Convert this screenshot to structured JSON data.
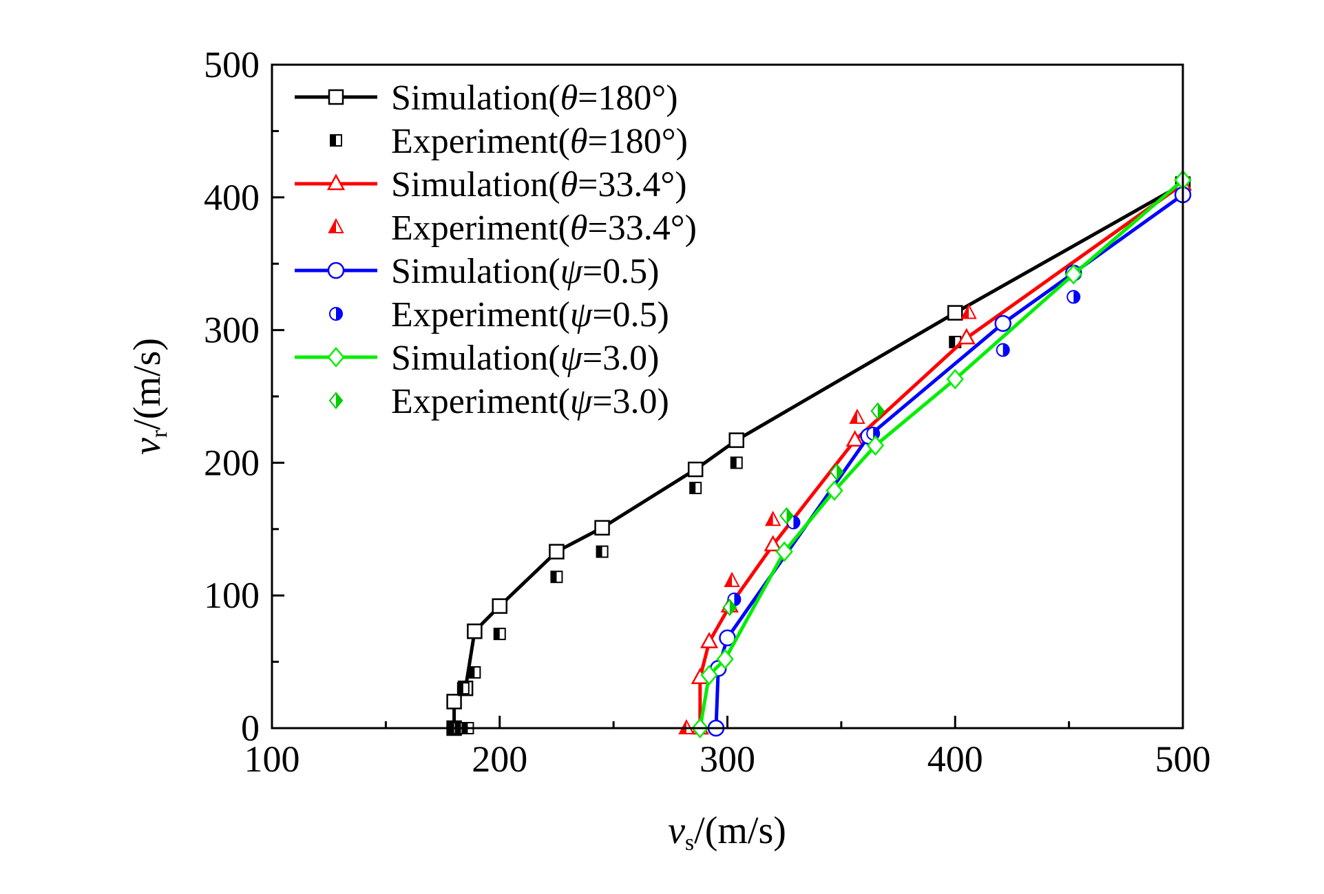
{
  "chart_data": {
    "type": "scatter",
    "x": {
      "label_var": "v",
      "label_sub": "s",
      "label_unit": "/(m/s)",
      "lim": [
        100,
        500
      ],
      "ticks": [
        100,
        200,
        300,
        400,
        500
      ],
      "tick_labels": [
        "100",
        "200",
        "300",
        "400",
        "500"
      ],
      "minor_step": 50
    },
    "y": {
      "label_var": "v",
      "label_sub": "r",
      "label_unit": "/(m/s)",
      "lim": [
        0,
        500
      ],
      "ticks": [
        0,
        100,
        200,
        300,
        400,
        500
      ],
      "tick_labels": [
        "0",
        "100",
        "200",
        "300",
        "400",
        "500"
      ],
      "minor_step": 50
    },
    "grid": false,
    "legend_position": "top-left",
    "series": [
      {
        "name": "Simulation(θ=180°)",
        "legend_prefix": "Simulation(",
        "legend_symbol": "θ",
        "legend_suffix": "=180°)",
        "kind": "line",
        "marker": "square-open",
        "color": "#000000",
        "points": [
          [
            180,
            0
          ],
          [
            180,
            20
          ],
          [
            185,
            30
          ],
          [
            189,
            73
          ],
          [
            200,
            92
          ],
          [
            225,
            133
          ],
          [
            245,
            151
          ],
          [
            286,
            195
          ],
          [
            304,
            217
          ],
          [
            400,
            313
          ],
          [
            500,
            410
          ]
        ]
      },
      {
        "name": "Experiment(θ=180°)",
        "legend_prefix": "Experiment(",
        "legend_symbol": "θ",
        "legend_suffix": "=180°)",
        "kind": "scatter",
        "marker": "square-half",
        "color": "#000000",
        "points": [
          [
            180,
            0
          ],
          [
            183,
            0
          ],
          [
            186,
            0
          ],
          [
            184,
            30
          ],
          [
            189,
            42
          ],
          [
            200,
            71
          ],
          [
            225,
            114
          ],
          [
            245,
            133
          ],
          [
            286,
            181
          ],
          [
            304,
            200
          ],
          [
            400,
            291
          ]
        ]
      },
      {
        "name": "Simulation(θ=33.4°)",
        "legend_prefix": "Simulation(",
        "legend_symbol": "θ",
        "legend_suffix": "=33.4°)",
        "kind": "line",
        "marker": "triangle-open",
        "color": "#ff0000",
        "points": [
          [
            288,
            0
          ],
          [
            288,
            38
          ],
          [
            292,
            65
          ],
          [
            301,
            92
          ],
          [
            320,
            138
          ],
          [
            356,
            217
          ],
          [
            405,
            294
          ],
          [
            500,
            410
          ]
        ]
      },
      {
        "name": "Experiment(θ=33.4°)",
        "legend_prefix": "Experiment(",
        "legend_symbol": "θ",
        "legend_suffix": "=33.4°)",
        "kind": "scatter",
        "marker": "triangle-half",
        "color": "#ff0000",
        "points": [
          [
            282,
            0
          ],
          [
            302,
            111
          ],
          [
            320,
            157
          ],
          [
            357,
            234
          ],
          [
            406,
            313
          ]
        ]
      },
      {
        "name": "Simulation(ψ=0.5)",
        "legend_prefix": "Simulation(",
        "legend_symbol": "ψ",
        "legend_suffix": "=0.5)",
        "kind": "line",
        "marker": "circle-open",
        "color": "#0000ff",
        "points": [
          [
            295,
            0
          ],
          [
            296,
            45
          ],
          [
            300,
            68
          ],
          [
            362,
            220
          ],
          [
            421,
            305
          ],
          [
            452,
            343
          ],
          [
            500,
            402
          ]
        ]
      },
      {
        "name": "Experiment(ψ=0.5)",
        "legend_prefix": "Experiment(",
        "legend_symbol": "ψ",
        "legend_suffix": "=0.5)",
        "kind": "scatter",
        "marker": "circle-half",
        "color": "#0000ff",
        "points": [
          [
            303,
            97
          ],
          [
            329,
            155
          ],
          [
            364,
            222
          ],
          [
            421,
            285
          ],
          [
            452,
            325
          ]
        ]
      },
      {
        "name": "Simulation(ψ=3.0)",
        "legend_prefix": "Simulation(",
        "legend_symbol": "ψ",
        "legend_suffix": "=3.0)",
        "kind": "line",
        "marker": "diamond-open",
        "color": "#00ee00",
        "points": [
          [
            288,
            0
          ],
          [
            292,
            40
          ],
          [
            299,
            52
          ],
          [
            325,
            133
          ],
          [
            347,
            179
          ],
          [
            365,
            213
          ],
          [
            400,
            263
          ],
          [
            452,
            342
          ],
          [
            500,
            413
          ]
        ]
      },
      {
        "name": "Experiment(ψ=3.0)",
        "legend_prefix": "Experiment(",
        "legend_symbol": "ψ",
        "legend_suffix": "=3.0)",
        "kind": "scatter",
        "marker": "diamond-half",
        "color": "#00cc00",
        "points": [
          [
            301,
            91
          ],
          [
            326,
            160
          ],
          [
            348,
            193
          ],
          [
            366,
            239
          ]
        ]
      }
    ]
  }
}
